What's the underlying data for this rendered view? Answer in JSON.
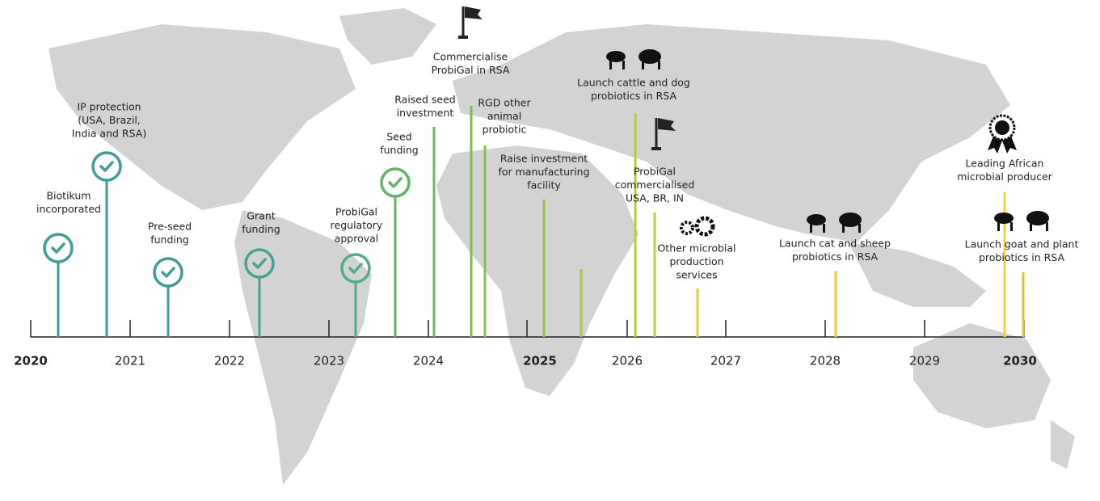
{
  "years": [
    "2020",
    "2021",
    "2022",
    "2023",
    "2024",
    "2025",
    "2026",
    "2027",
    "2028",
    "2029",
    "2030"
  ],
  "milestones": [
    {
      "lines": [
        "Biotikum",
        "incorporated"
      ]
    },
    {
      "lines": [
        "IP protection",
        "(USA, Brazil,",
        "India and RSA)"
      ]
    },
    {
      "lines": [
        "Pre-seed",
        "funding"
      ]
    },
    {
      "lines": [
        "Grant",
        "funding"
      ]
    },
    {
      "lines": [
        "ProbiGal",
        "regulatory",
        "approval"
      ]
    },
    {
      "lines": [
        "Seed",
        "funding"
      ]
    },
    {
      "lines": [
        "Raised seed",
        "investment"
      ]
    },
    {
      "lines": [
        "Commercialise",
        "ProbiGal in RSA"
      ]
    },
    {
      "lines": [
        "RGD other",
        "animal",
        "probiotic"
      ]
    },
    {
      "lines": [
        "Raise investment",
        "for manufacturing",
        "facility"
      ]
    },
    {
      "lines": [
        "Launch cattle and dog",
        "probiotics in RSA"
      ]
    },
    {
      "lines": [
        "ProbiGal",
        "commercialised",
        "USA, BR, IN"
      ]
    },
    {
      "lines": [
        "Other microbial",
        "production",
        "services"
      ]
    },
    {
      "lines": [
        "Launch cat and sheep",
        "probiotics in RSA"
      ]
    },
    {
      "lines": [
        "Leading African",
        "microbial producer"
      ]
    },
    {
      "lines": [
        "Launch goat and plant",
        "probiotics in RSA"
      ]
    }
  ]
}
